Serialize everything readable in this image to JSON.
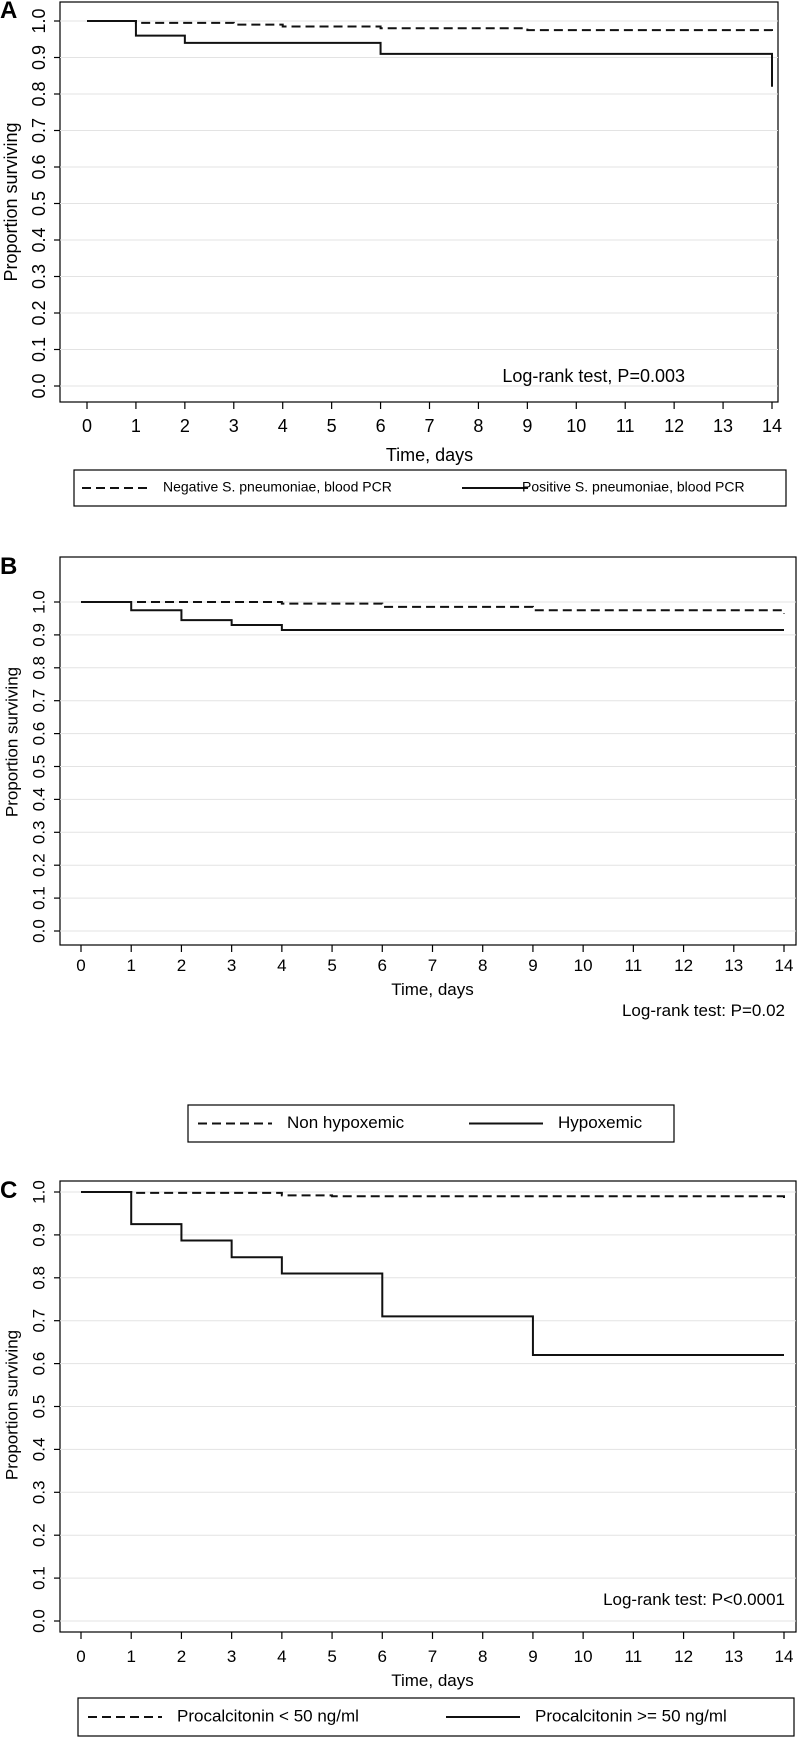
{
  "chart_data": [
    {
      "type": "line",
      "panel_label": "A",
      "ylabel": "Proportion surviving",
      "xlabel": "Time, days",
      "xlim": [
        0,
        14
      ],
      "ylim": [
        0,
        1
      ],
      "xticks": [
        "0",
        "1",
        "2",
        "3",
        "4",
        "5",
        "6",
        "7",
        "8",
        "9",
        "10",
        "11",
        "12",
        "13",
        "14"
      ],
      "yticks": [
        "0.0",
        "0.1",
        "0.2",
        "0.3",
        "0.4",
        "0.5",
        "0.6",
        "0.7",
        "0.8",
        "0.9",
        "1.0"
      ],
      "grid": true,
      "annotation": "Log-rank test, P=0.003",
      "series": [
        {
          "name": "Negative S. pneumoniae, blood PCR",
          "style": "dashed",
          "points": [
            [
              0,
              1.0
            ],
            [
              1,
              0.995
            ],
            [
              3,
              0.99
            ],
            [
              4,
              0.985
            ],
            [
              6,
              0.98
            ],
            [
              9,
              0.975
            ],
            [
              14,
              0.97
            ]
          ]
        },
        {
          "name": "Positive S. pneumoniae, blood PCR",
          "style": "solid",
          "points": [
            [
              0,
              1.0
            ],
            [
              1,
              0.96
            ],
            [
              2,
              0.94
            ],
            [
              6,
              0.91
            ],
            [
              14,
              0.82
            ]
          ]
        }
      ]
    },
    {
      "type": "line",
      "panel_label": "B",
      "ylabel": "Proportion surviving",
      "xlabel": "Time, days",
      "xlim": [
        0,
        14
      ],
      "ylim": [
        0,
        1
      ],
      "xticks": [
        "0",
        "1",
        "2",
        "3",
        "4",
        "5",
        "6",
        "7",
        "8",
        "9",
        "10",
        "11",
        "12",
        "13",
        "14"
      ],
      "yticks": [
        "0.0",
        "0.1",
        "0.2",
        "0.3",
        "0.4",
        "0.5",
        "0.6",
        "0.7",
        "0.8",
        "0.9",
        "1.0"
      ],
      "grid": true,
      "annotation": "Log-rank test: P=0.02",
      "series": [
        {
          "name": "Non hypoxemic",
          "style": "dashed",
          "points": [
            [
              0,
              1.0
            ],
            [
              4,
              0.995
            ],
            [
              6,
              0.985
            ],
            [
              9,
              0.975
            ],
            [
              14,
              0.965
            ]
          ]
        },
        {
          "name": "Hypoxemic",
          "style": "solid",
          "points": [
            [
              0,
              1.0
            ],
            [
              1,
              0.975
            ],
            [
              2,
              0.945
            ],
            [
              3,
              0.93
            ],
            [
              4,
              0.915
            ],
            [
              14,
              0.915
            ]
          ]
        }
      ]
    },
    {
      "type": "line",
      "panel_label": "C",
      "ylabel": "Proportion surviving",
      "xlabel": "Time, days",
      "xlim": [
        0,
        14
      ],
      "ylim": [
        0,
        1
      ],
      "xticks": [
        "0",
        "1",
        "2",
        "3",
        "4",
        "5",
        "6",
        "7",
        "8",
        "9",
        "10",
        "11",
        "12",
        "13",
        "14"
      ],
      "yticks": [
        "0.0",
        "0.1",
        "0.2",
        "0.3",
        "0.4",
        "0.5",
        "0.6",
        "0.7",
        "0.8",
        "0.9",
        "1.0"
      ],
      "grid": true,
      "annotation": "Log-rank test: P<0.0001",
      "series": [
        {
          "name": "Procalcitonin < 50 ng/ml",
          "style": "dashed",
          "points": [
            [
              0,
              1.0
            ],
            [
              1,
              0.998
            ],
            [
              4,
              0.992
            ],
            [
              5,
              0.99
            ],
            [
              14,
              0.975
            ]
          ]
        },
        {
          "name": "Procalcitonin >= 50 ng/ml",
          "style": "solid",
          "points": [
            [
              0,
              1.0
            ],
            [
              1,
              0.925
            ],
            [
              2,
              0.887
            ],
            [
              3,
              0.848
            ],
            [
              4,
              0.81
            ],
            [
              6,
              0.71
            ],
            [
              9,
              0.62
            ],
            [
              14,
              0.62
            ]
          ]
        }
      ]
    }
  ]
}
